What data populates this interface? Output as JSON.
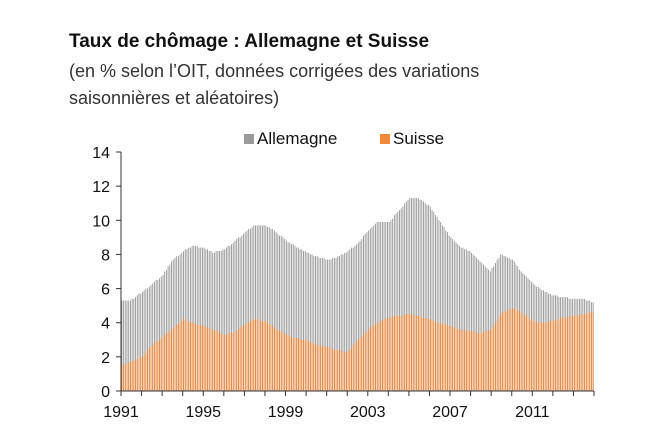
{
  "title": "Taux de chômage : Allemagne et Suisse",
  "subtitle": "(en % selon l’OIT, données corrigées des variations saisonnières et aléatoires)",
  "colors": {
    "allemagne": "#9a9a9a",
    "suisse": "#f08a3a",
    "axis": "#333333",
    "grid": "#dddddd",
    "text": "#111111"
  },
  "chart_data": {
    "type": "bar",
    "title": "Taux de chômage : Allemagne et Suisse",
    "subtitle": "(en % selon l’OIT, données corrigées des variations saisonnières et aléatoires)",
    "frequency": "monthly",
    "x_start": "1991-01",
    "x_end": "2013-12",
    "ylim": [
      0,
      14
    ],
    "yticks": [
      0,
      2,
      4,
      6,
      8,
      10,
      12,
      14
    ],
    "xticks": [
      "1991",
      "1995",
      "1999",
      "2003",
      "2007",
      "2011"
    ],
    "legend": {
      "position": "top-center",
      "entries": [
        "Allemagne",
        "Suisse"
      ]
    },
    "grid": false,
    "series": [
      {
        "name": "Allemagne",
        "color": "#9a9a9a",
        "style": "overlaid-bars",
        "anchors": [
          [
            "1991-01",
            5.3
          ],
          [
            "1991-06",
            5.3
          ],
          [
            "1992-01",
            5.8
          ],
          [
            "1992-06",
            6.2
          ],
          [
            "1993-01",
            6.8
          ],
          [
            "1993-06",
            7.6
          ],
          [
            "1994-01",
            8.2
          ],
          [
            "1994-06",
            8.5
          ],
          [
            "1995-01",
            8.4
          ],
          [
            "1995-06",
            8.1
          ],
          [
            "1996-01",
            8.3
          ],
          [
            "1996-06",
            8.7
          ],
          [
            "1997-01",
            9.3
          ],
          [
            "1997-06",
            9.7
          ],
          [
            "1998-01",
            9.7
          ],
          [
            "1998-06",
            9.4
          ],
          [
            "1999-01",
            8.8
          ],
          [
            "1999-06",
            8.5
          ],
          [
            "2000-01",
            8.1
          ],
          [
            "2000-06",
            7.9
          ],
          [
            "2001-01",
            7.7
          ],
          [
            "2001-06",
            7.8
          ],
          [
            "2002-01",
            8.2
          ],
          [
            "2002-06",
            8.6
          ],
          [
            "2003-01",
            9.4
          ],
          [
            "2003-06",
            9.9
          ],
          [
            "2004-01",
            9.9
          ],
          [
            "2004-06",
            10.5
          ],
          [
            "2005-01",
            11.3
          ],
          [
            "2005-06",
            11.3
          ],
          [
            "2006-01",
            10.8
          ],
          [
            "2006-06",
            10.0
          ],
          [
            "2007-01",
            9.0
          ],
          [
            "2007-06",
            8.5
          ],
          [
            "2008-01",
            8.1
          ],
          [
            "2008-06",
            7.6
          ],
          [
            "2008-12",
            7.0
          ],
          [
            "2009-06",
            8.0
          ],
          [
            "2010-01",
            7.7
          ],
          [
            "2010-06",
            7.0
          ],
          [
            "2011-01",
            6.3
          ],
          [
            "2011-06",
            5.9
          ],
          [
            "2012-01",
            5.6
          ],
          [
            "2012-06",
            5.5
          ],
          [
            "2013-01",
            5.4
          ],
          [
            "2013-06",
            5.4
          ],
          [
            "2013-12",
            5.2
          ]
        ]
      },
      {
        "name": "Suisse",
        "color": "#f08a3a",
        "style": "overlaid-bars",
        "anchors": [
          [
            "1991-01",
            1.5
          ],
          [
            "1991-06",
            1.7
          ],
          [
            "1992-01",
            2.0
          ],
          [
            "1992-06",
            2.6
          ],
          [
            "1993-01",
            3.2
          ],
          [
            "1993-06",
            3.6
          ],
          [
            "1994-01",
            4.2
          ],
          [
            "1994-06",
            4.0
          ],
          [
            "1995-01",
            3.8
          ],
          [
            "1995-06",
            3.6
          ],
          [
            "1996-01",
            3.3
          ],
          [
            "1996-06",
            3.4
          ],
          [
            "1997-01",
            3.9
          ],
          [
            "1997-06",
            4.2
          ],
          [
            "1998-01",
            4.1
          ],
          [
            "1998-06",
            3.7
          ],
          [
            "1999-01",
            3.3
          ],
          [
            "1999-06",
            3.1
          ],
          [
            "2000-01",
            3.0
          ],
          [
            "2000-06",
            2.7
          ],
          [
            "2001-01",
            2.6
          ],
          [
            "2001-06",
            2.4
          ],
          [
            "2002-01",
            2.3
          ],
          [
            "2002-06",
            2.9
          ],
          [
            "2003-01",
            3.6
          ],
          [
            "2003-06",
            4.0
          ],
          [
            "2004-01",
            4.3
          ],
          [
            "2004-06",
            4.4
          ],
          [
            "2005-01",
            4.5
          ],
          [
            "2005-06",
            4.4
          ],
          [
            "2006-01",
            4.2
          ],
          [
            "2006-06",
            4.0
          ],
          [
            "2007-01",
            3.8
          ],
          [
            "2007-06",
            3.6
          ],
          [
            "2008-01",
            3.5
          ],
          [
            "2008-06",
            3.4
          ],
          [
            "2009-01",
            3.6
          ],
          [
            "2009-06",
            4.5
          ],
          [
            "2010-01",
            4.9
          ],
          [
            "2010-06",
            4.6
          ],
          [
            "2011-01",
            4.1
          ],
          [
            "2011-06",
            4.0
          ],
          [
            "2012-01",
            4.1
          ],
          [
            "2012-06",
            4.3
          ],
          [
            "2013-01",
            4.4
          ],
          [
            "2013-06",
            4.5
          ],
          [
            "2013-12",
            4.6
          ]
        ]
      }
    ]
  }
}
